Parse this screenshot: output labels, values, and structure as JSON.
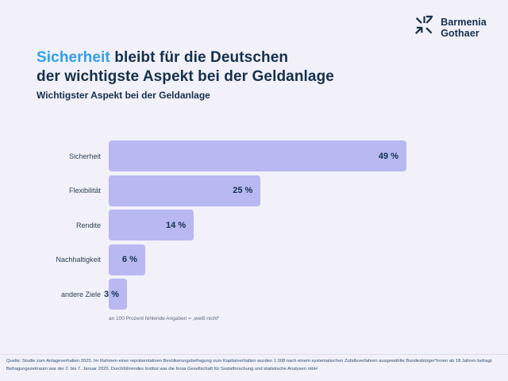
{
  "colors": {
    "background": "#f2f1f9",
    "navy": "#14304e",
    "accent_blue": "#2f9ff2",
    "bar_fill": "#b9b8f1"
  },
  "logo": {
    "icon": "barmenia-gothaer-star-icon",
    "brand_line1": "Barmenia",
    "brand_line2": "Gothaer"
  },
  "title": {
    "highlight": "Sicherheit",
    "rest_line1": " bleibt für die Deutschen",
    "line2": "der wichtigste Aspekt bei der Geldanlage"
  },
  "subtitle": "Wichtigster Aspekt bei der Geldanlage",
  "chart_data": {
    "type": "bar",
    "orientation": "horizontal",
    "title": "Wichtigster Aspekt bei der Geldanlage",
    "categories": [
      "Sicherheit",
      "Flexibilität",
      "Rendite",
      "Nachhaltigkeit",
      "andere Ziele"
    ],
    "values": [
      49,
      25,
      14,
      6,
      3
    ],
    "value_labels": [
      "49 %",
      "25 %",
      "14 %",
      "6 %",
      "3 %"
    ],
    "unit": "%",
    "xlim": [
      0,
      49
    ],
    "grid": false,
    "legend": false,
    "bar_color": "#b9b8f1",
    "footnote": "an 100 Prozent fehlende Angaben = „weiß nicht“"
  },
  "footer": {
    "source_line1": "Quelle: Studie zum Anlageverhalten 2025. Im Rahmen einer repräsentativen Bevölkerungsbefragung zum Kapitalverhalten wurden 1.008 nach einem systematischen Zufallsverfahren ausgewählte Bundesbürger*innen ab 18 Jahren befragt.",
    "source_line2": "Befragungszeitraum war der 2. bis 7. Januar 2025. Durchführendes Institut war die forsa Gesellschaft für Sozialforschung und statistische Analysen mbH"
  }
}
